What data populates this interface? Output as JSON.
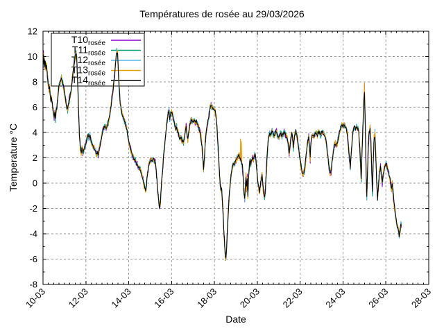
{
  "window": {
    "background": "#ffffff"
  },
  "chart_data": {
    "type": "line",
    "title": "Températures de rosée au 29/03/2026",
    "xlabel": "Date",
    "ylabel": "Temperature °C",
    "x_domain": [
      10,
      28
    ],
    "x_tick_step_days": 2,
    "x_tick_labels": [
      "10-03",
      "12-03",
      "14-03",
      "16-03",
      "18-03",
      "20-03",
      "22-03",
      "24-03",
      "26-03",
      "28-03"
    ],
    "ylim": [
      -8,
      12
    ],
    "y_tick_step": 2,
    "y_tick_labels": [
      "-8",
      "-6",
      "-4",
      "-2",
      "0",
      "2",
      "4",
      "6",
      "8",
      "10",
      "12"
    ],
    "grid": true,
    "grid_color": "#999999",
    "axis_color": "#000000",
    "legend": {
      "position": "top-left",
      "entries": [
        {
          "name": "T10_rosée",
          "label": "T10",
          "sub": "rosée",
          "color": "#9400d3"
        },
        {
          "name": "T11_rosée",
          "label": "T11",
          "sub": "rosée",
          "color": "#009e73"
        },
        {
          "name": "T12_rosée",
          "label": "T12",
          "sub": "rosée",
          "color": "#56b4e9"
        },
        {
          "name": "T13_rosée",
          "label": "T13",
          "sub": "rosée",
          "color": "#e69f00"
        },
        {
          "name": "T14_rosée",
          "label": "T14",
          "sub": "rosée",
          "color": "#000000"
        }
      ]
    },
    "base_keypoints": [
      [
        10,
        9.5
      ],
      [
        10.02,
        10.2
      ],
      [
        10.04,
        9.4
      ],
      [
        10.06,
        9.8
      ],
      [
        10.08,
        9.2
      ],
      [
        10.1,
        9.6
      ],
      [
        10.13,
        9.1
      ],
      [
        10.16,
        9.4
      ],
      [
        10.19,
        8.8
      ],
      [
        10.22,
        8.2
      ],
      [
        10.25,
        7.7
      ],
      [
        10.28,
        7.4
      ],
      [
        10.31,
        7.6
      ],
      [
        10.34,
        6.9
      ],
      [
        10.37,
        6.5
      ],
      [
        10.4,
        6.7
      ],
      [
        10.43,
        6.3
      ],
      [
        10.46,
        5.9
      ],
      [
        10.49,
        5.5
      ],
      [
        10.52,
        5.2
      ],
      [
        10.55,
        5.5
      ],
      [
        10.58,
        5.1
      ],
      [
        10.61,
        5.7
      ],
      [
        10.64,
        5.9
      ],
      [
        10.67,
        6.4
      ],
      [
        10.7,
        7.0
      ],
      [
        10.74,
        7.6
      ],
      [
        10.78,
        7.9
      ],
      [
        10.82,
        8.1
      ],
      [
        10.86,
        8.3
      ],
      [
        10.9,
        8.0
      ],
      [
        10.95,
        7.7
      ],
      [
        11,
        7.2
      ],
      [
        11.05,
        6.6
      ],
      [
        11.1,
        6.1
      ],
      [
        11.15,
        5.8
      ],
      [
        11.2,
        6.3
      ],
      [
        11.25,
        6.8
      ],
      [
        11.3,
        7.3
      ],
      [
        11.35,
        8.0
      ],
      [
        11.4,
        8.7
      ],
      [
        11.45,
        9.4
      ],
      [
        11.5,
        10.0
      ],
      [
        11.54,
        10.35
      ],
      [
        11.58,
        9.6
      ],
      [
        11.62,
        7.8
      ],
      [
        11.66,
        5.6
      ],
      [
        11.7,
        3.8
      ],
      [
        11.74,
        2.8
      ],
      [
        11.78,
        2.4
      ],
      [
        11.82,
        2.7
      ],
      [
        11.86,
        2.4
      ],
      [
        11.9,
        2.6
      ],
      [
        11.95,
        2.9
      ],
      [
        12,
        3.1
      ],
      [
        12.05,
        3.5
      ],
      [
        12.1,
        3.8
      ],
      [
        12.14,
        3.6
      ],
      [
        12.18,
        3.8
      ],
      [
        12.22,
        3.5
      ],
      [
        12.26,
        3.2
      ],
      [
        12.3,
        3.1
      ],
      [
        12.35,
        2.9
      ],
      [
        12.4,
        2.7
      ],
      [
        12.45,
        2.5
      ],
      [
        12.5,
        2.3
      ],
      [
        12.54,
        2.5
      ],
      [
        12.58,
        2.2
      ],
      [
        12.62,
        2.6
      ],
      [
        12.66,
        3.0
      ],
      [
        12.7,
        3.3
      ],
      [
        12.75,
        3.8
      ],
      [
        12.8,
        4.2
      ],
      [
        12.85,
        4.4
      ],
      [
        12.9,
        4.5
      ],
      [
        12.95,
        4.4
      ],
      [
        13,
        4.6
      ],
      [
        13.05,
        4.8
      ],
      [
        13.1,
        5.2
      ],
      [
        13.15,
        5.8
      ],
      [
        13.2,
        6.5
      ],
      [
        13.25,
        7.2
      ],
      [
        13.3,
        7.9
      ],
      [
        13.35,
        8.8
      ],
      [
        13.4,
        9.7
      ],
      [
        13.44,
        10.4
      ],
      [
        13.48,
        10.1
      ],
      [
        13.52,
        8.8
      ],
      [
        13.56,
        7.3
      ],
      [
        13.6,
        6.3
      ],
      [
        13.64,
        5.9
      ],
      [
        13.68,
        5.6
      ],
      [
        13.72,
        5.3
      ],
      [
        13.76,
        5.1
      ],
      [
        13.8,
        4.9
      ],
      [
        13.84,
        4.7
      ],
      [
        13.88,
        4.5
      ],
      [
        13.92,
        4.2
      ],
      [
        13.96,
        3.7
      ],
      [
        14,
        3.3
      ],
      [
        14.05,
        2.9
      ],
      [
        14.1,
        2.6
      ],
      [
        14.15,
        2.3
      ],
      [
        14.2,
        2.1
      ],
      [
        14.25,
        1.9
      ],
      [
        14.3,
        1.8
      ],
      [
        14.35,
        1.6
      ],
      [
        14.4,
        1.5
      ],
      [
        14.45,
        1.3
      ],
      [
        14.5,
        1.2
      ],
      [
        14.55,
        1.0
      ],
      [
        14.6,
        0.7
      ],
      [
        14.65,
        0.4
      ],
      [
        14.7,
        0.0
      ],
      [
        14.75,
        -0.4
      ],
      [
        14.79,
        -0.6
      ],
      [
        14.83,
        -0.1
      ],
      [
        14.87,
        0.6
      ],
      [
        14.91,
        1.1
      ],
      [
        14.95,
        1.5
      ],
      [
        15,
        1.7
      ],
      [
        15.05,
        1.85
      ],
      [
        15.1,
        1.8
      ],
      [
        15.15,
        1.9
      ],
      [
        15.2,
        1.75
      ],
      [
        15.24,
        1.6
      ],
      [
        15.28,
        1.0
      ],
      [
        15.32,
        0.2
      ],
      [
        15.36,
        -0.7
      ],
      [
        15.4,
        -1.5
      ],
      [
        15.44,
        -2.0
      ],
      [
        15.48,
        -1.4
      ],
      [
        15.52,
        -0.4
      ],
      [
        15.56,
        0.6
      ],
      [
        15.6,
        1.5
      ],
      [
        15.64,
        2.3
      ],
      [
        15.68,
        3.0
      ],
      [
        15.72,
        3.7
      ],
      [
        15.76,
        4.4
      ],
      [
        15.8,
        5.0
      ],
      [
        15.84,
        5.5
      ],
      [
        15.88,
        5.75
      ],
      [
        15.91,
        5.0
      ],
      [
        15.94,
        5.3
      ],
      [
        15.97,
        5.55
      ],
      [
        16,
        5.6
      ],
      [
        16.04,
        5.4
      ],
      [
        16.08,
        5.1
      ],
      [
        16.12,
        4.8
      ],
      [
        16.16,
        4.5
      ],
      [
        16.2,
        4.3
      ],
      [
        16.24,
        4.45
      ],
      [
        16.28,
        4.1
      ],
      [
        16.32,
        3.9
      ],
      [
        16.36,
        3.6
      ],
      [
        16.4,
        3.5
      ],
      [
        16.44,
        3.6
      ],
      [
        16.48,
        3.4
      ],
      [
        16.52,
        3.3
      ],
      [
        16.56,
        3.25
      ],
      [
        16.6,
        3.6
      ],
      [
        16.64,
        4.2
      ],
      [
        16.68,
        4.5
      ],
      [
        16.72,
        3.9
      ],
      [
        16.76,
        3.5
      ],
      [
        16.8,
        4.0
      ],
      [
        16.84,
        4.5
      ],
      [
        16.88,
        4.8
      ],
      [
        16.92,
        5.0
      ],
      [
        16.96,
        4.9
      ],
      [
        17,
        4.85
      ],
      [
        17.05,
        4.95
      ],
      [
        17.1,
        4.8
      ],
      [
        17.15,
        4.9
      ],
      [
        17.2,
        4.7
      ],
      [
        17.25,
        4.5
      ],
      [
        17.3,
        4.2
      ],
      [
        17.35,
        3.9
      ],
      [
        17.4,
        3.2
      ],
      [
        17.45,
        2.4
      ],
      [
        17.49,
        1.0
      ],
      [
        17.53,
        2.0
      ],
      [
        17.57,
        3.2
      ],
      [
        17.61,
        4.0
      ],
      [
        17.65,
        4.4
      ],
      [
        17.7,
        4.9
      ],
      [
        17.75,
        5.4
      ],
      [
        17.8,
        5.95
      ],
      [
        17.84,
        6.15
      ],
      [
        17.88,
        6.0
      ],
      [
        17.92,
        5.95
      ],
      [
        17.96,
        5.85
      ],
      [
        18,
        5.8
      ],
      [
        18.04,
        5.6
      ],
      [
        18.08,
        5.1
      ],
      [
        18.12,
        4.3
      ],
      [
        18.16,
        3.2
      ],
      [
        18.2,
        1.8
      ],
      [
        18.24,
        0.6
      ],
      [
        18.27,
        -0.2
      ],
      [
        18.3,
        -0.45
      ],
      [
        18.33,
        -0.5
      ],
      [
        18.36,
        -1.0
      ],
      [
        18.39,
        -1.9
      ],
      [
        18.42,
        -3.0
      ],
      [
        18.45,
        -4.1
      ],
      [
        18.48,
        -5.0
      ],
      [
        18.51,
        -5.7
      ],
      [
        18.54,
        -6.0
      ],
      [
        18.57,
        -5.0
      ],
      [
        18.6,
        -3.8
      ],
      [
        18.64,
        -2.4
      ],
      [
        18.68,
        -1.2
      ],
      [
        18.72,
        -0.3
      ],
      [
        18.76,
        0.4
      ],
      [
        18.8,
        0.9
      ],
      [
        18.84,
        1.3
      ],
      [
        18.88,
        1.55
      ],
      [
        18.92,
        1.5
      ],
      [
        18.96,
        1.6
      ],
      [
        19,
        1.75
      ],
      [
        19.05,
        1.95
      ],
      [
        19.1,
        2.1
      ],
      [
        19.14,
        2.2
      ],
      [
        19.18,
        2.05
      ],
      [
        19.22,
        1.9
      ],
      [
        19.26,
        1.7
      ],
      [
        19.3,
        1.4
      ],
      [
        19.34,
        0.4
      ],
      [
        19.38,
        -0.7
      ],
      [
        19.41,
        -1.2
      ],
      [
        19.44,
        -0.4
      ],
      [
        19.47,
        0.6
      ],
      [
        19.5,
        -0.4
      ],
      [
        19.53,
        0.5
      ],
      [
        19.56,
        -0.9
      ],
      [
        19.59,
        0.4
      ],
      [
        19.62,
        1.2
      ],
      [
        19.66,
        1.8
      ],
      [
        19.7,
        1.5
      ],
      [
        19.74,
        1.9
      ],
      [
        19.78,
        2.0
      ],
      [
        19.82,
        1.9
      ],
      [
        19.86,
        2.1
      ],
      [
        19.9,
        2.3
      ],
      [
        19.94,
        1.8
      ],
      [
        19.98,
        0.9
      ],
      [
        20.02,
        0.2
      ],
      [
        20.06,
        -0.3
      ],
      [
        20.1,
        -0.7
      ],
      [
        20.14,
        -0.2
      ],
      [
        20.18,
        0.3
      ],
      [
        20.22,
        0.55
      ],
      [
        20.26,
        -0.2
      ],
      [
        20.3,
        -0.8
      ],
      [
        20.34,
        -1.1
      ],
      [
        20.38,
        -0.4
      ],
      [
        20.42,
        0.9
      ],
      [
        20.46,
        2.2
      ],
      [
        20.5,
        3.2
      ],
      [
        20.54,
        3.7
      ],
      [
        20.58,
        3.95
      ],
      [
        20.62,
        3.8
      ],
      [
        20.66,
        4.0
      ],
      [
        20.7,
        4.15
      ],
      [
        20.74,
        3.9
      ],
      [
        20.78,
        3.7
      ],
      [
        20.82,
        3.9
      ],
      [
        20.86,
        4.05
      ],
      [
        20.9,
        4.1
      ],
      [
        20.94,
        3.8
      ],
      [
        21,
        3.6
      ],
      [
        21.05,
        3.8
      ],
      [
        21.1,
        4.0
      ],
      [
        21.15,
        3.7
      ],
      [
        21.2,
        3.9
      ],
      [
        21.25,
        4.1
      ],
      [
        21.3,
        3.9
      ],
      [
        21.35,
        3.7
      ],
      [
        21.4,
        3.5
      ],
      [
        21.45,
        3.0
      ],
      [
        21.49,
        2.3
      ],
      [
        21.53,
        3.0
      ],
      [
        21.57,
        3.6
      ],
      [
        21.61,
        3.9
      ],
      [
        21.65,
        3.6
      ],
      [
        21.68,
        2.8
      ],
      [
        21.72,
        3.5
      ],
      [
        21.76,
        3.9
      ],
      [
        21.8,
        4.1
      ],
      [
        21.84,
        3.8
      ],
      [
        21.88,
        3.4
      ],
      [
        21.92,
        2.9
      ],
      [
        21.96,
        2.3
      ],
      [
        22,
        1.9
      ],
      [
        22.05,
        1.3
      ],
      [
        22.1,
        0.8
      ],
      [
        22.15,
        0.7
      ],
      [
        22.2,
        1.0
      ],
      [
        22.25,
        1.7
      ],
      [
        22.3,
        2.6
      ],
      [
        22.35,
        3.3
      ],
      [
        22.4,
        3.6
      ],
      [
        22.44,
        2.8
      ],
      [
        22.47,
        1.9
      ],
      [
        22.5,
        3.2
      ],
      [
        22.55,
        3.7
      ],
      [
        22.6,
        3.85
      ],
      [
        22.65,
        3.7
      ],
      [
        22.7,
        3.9
      ],
      [
        22.75,
        4.0
      ],
      [
        22.8,
        3.8
      ],
      [
        22.85,
        4.1
      ],
      [
        22.9,
        3.95
      ],
      [
        22.95,
        3.8
      ],
      [
        23,
        4.0
      ],
      [
        23.05,
        4.1
      ],
      [
        23.1,
        3.9
      ],
      [
        23.15,
        3.75
      ],
      [
        23.2,
        3.5
      ],
      [
        23.25,
        2.8
      ],
      [
        23.3,
        2.0
      ],
      [
        23.35,
        1.2
      ],
      [
        23.4,
        0.7
      ],
      [
        23.44,
        0.9
      ],
      [
        23.48,
        1.5
      ],
      [
        23.52,
        2.1
      ],
      [
        23.56,
        2.7
      ],
      [
        23.6,
        3.0
      ],
      [
        23.64,
        3.15
      ],
      [
        23.68,
        2.95
      ],
      [
        23.72,
        3.1
      ],
      [
        23.76,
        3.4
      ],
      [
        23.8,
        3.7
      ],
      [
        23.85,
        4.1
      ],
      [
        23.9,
        4.4
      ],
      [
        23.95,
        4.6
      ],
      [
        24,
        4.5
      ],
      [
        24.05,
        4.65
      ],
      [
        24.1,
        4.4
      ],
      [
        24.15,
        4.25
      ],
      [
        24.2,
        3.9
      ],
      [
        24.25,
        3.0
      ],
      [
        24.3,
        2.0
      ],
      [
        24.34,
        1.3
      ],
      [
        24.38,
        2.2
      ],
      [
        24.42,
        3.2
      ],
      [
        24.46,
        4.0
      ],
      [
        24.5,
        4.35
      ],
      [
        24.54,
        4.5
      ],
      [
        24.58,
        4.3
      ],
      [
        24.62,
        4.55
      ],
      [
        24.66,
        4.4
      ],
      [
        24.7,
        4.3
      ],
      [
        24.74,
        3.9
      ],
      [
        24.78,
        2.9
      ],
      [
        24.82,
        1.4
      ],
      [
        24.85,
        0.4
      ],
      [
        24.88,
        2.2
      ],
      [
        24.91,
        3.6
      ],
      [
        24.94,
        5.0
      ],
      [
        24.97,
        6.4
      ],
      [
        25,
        7.4
      ],
      [
        25.04,
        4.5
      ],
      [
        25.08,
        1.0
      ],
      [
        25.11,
        -1.3
      ],
      [
        25.14,
        0.8
      ],
      [
        25.18,
        2.9
      ],
      [
        25.22,
        4.0
      ],
      [
        25.26,
        4.3
      ],
      [
        25.3,
        3.2
      ],
      [
        25.34,
        1.0
      ],
      [
        25.37,
        -0.5
      ],
      [
        25.41,
        1.8
      ],
      [
        25.45,
        3.6
      ],
      [
        25.49,
        3.8
      ],
      [
        25.53,
        2.2
      ],
      [
        25.57,
        0.2
      ],
      [
        25.61,
        -1.2
      ],
      [
        25.65,
        -0.3
      ],
      [
        25.7,
        0.8
      ],
      [
        25.75,
        1.3
      ],
      [
        25.79,
        0.6
      ],
      [
        25.83,
        0.0
      ],
      [
        25.87,
        0.6
      ],
      [
        25.92,
        1.1
      ],
      [
        25.97,
        1.4
      ],
      [
        26.02,
        1.5
      ],
      [
        26.07,
        1.2
      ],
      [
        26.12,
        0.9
      ],
      [
        26.17,
        0.5
      ],
      [
        26.22,
        0.1
      ],
      [
        26.26,
        -0.5
      ],
      [
        26.3,
        -0.1
      ],
      [
        26.34,
        -0.8
      ],
      [
        26.38,
        -1.6
      ],
      [
        26.43,
        -2.3
      ],
      [
        26.48,
        -2.9
      ],
      [
        26.53,
        -3.4
      ],
      [
        26.58,
        -3.7
      ],
      [
        26.62,
        -4.2
      ],
      [
        26.66,
        -3.8
      ],
      [
        26.7,
        -3.2
      ],
      [
        26.73,
        -3.4
      ]
    ],
    "t13_spikes": [
      [
        19.21,
        3.5
      ],
      [
        19.27,
        3.3
      ]
    ]
  }
}
